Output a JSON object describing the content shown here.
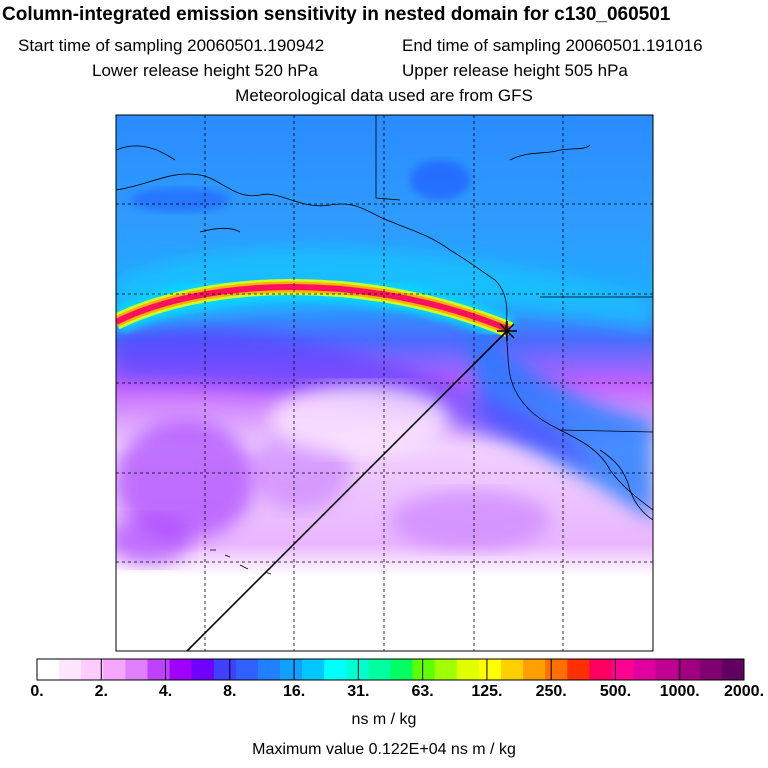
{
  "title": "Column-integrated emission sensitivity in nested domain for c130_060501",
  "header": {
    "start_label": "Start time of sampling 20060501.190942",
    "end_label": "End time of sampling 20060501.191016",
    "lower_label": "Lower release height  520 hPa",
    "upper_label": "Upper release height  505 hPa",
    "met_label": "Meteorological data used are from GFS"
  },
  "colorbar": {
    "ticks": [
      "0.",
      "2.",
      "4.",
      "8.",
      "16.",
      "31.",
      "63.",
      "125.",
      "250.",
      "500.",
      "1000.",
      "2000."
    ],
    "colors": [
      "#ffffff",
      "#ffe6ff",
      "#ffccff",
      "#f5a6ff",
      "#e080ff",
      "#c040ff",
      "#a000ff",
      "#7000ff",
      "#4040ff",
      "#3060ff",
      "#2080ff",
      "#10a0ff",
      "#00c8ff",
      "#00ffff",
      "#00ffd0",
      "#00ffa0",
      "#00ff60",
      "#60ff00",
      "#a0ff00",
      "#e0ff00",
      "#ffff00",
      "#ffd000",
      "#ffa000",
      "#ff7000",
      "#ff3000",
      "#ff0060",
      "#ff0090",
      "#e000a0",
      "#c00090",
      "#a00080",
      "#800070",
      "#600060"
    ],
    "units": "ns m / kg"
  },
  "max_value_label": "Maximum value  0.122E+04 ns m / kg",
  "colors": {
    "background": "#ffffff",
    "plume_core": "#ff1060",
    "ocean_low": "#d8a0ff",
    "field_mid": "#2080ff",
    "field_high": "#00d0ff"
  },
  "icons": {
    "release_point": "asterisk-marker-icon"
  }
}
